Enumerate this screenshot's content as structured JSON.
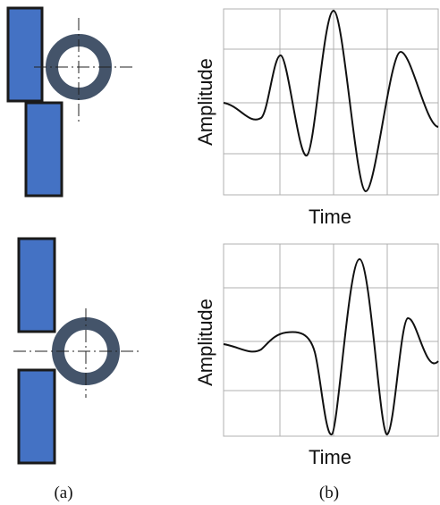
{
  "captions": {
    "a": "(a)",
    "b": "(b)"
  },
  "colors": {
    "bar_fill": "#4472c4",
    "bar_stroke": "#1a1a1a",
    "ring_fill": "#44546a",
    "wave_stroke": "#111111",
    "grid": "#b0b0b0",
    "crosshair": "#222222"
  },
  "panels": [
    {
      "id": "top",
      "xlabel": "Time",
      "ylabel": "Amplitude"
    },
    {
      "id": "bottom",
      "xlabel": "Time",
      "ylabel": "Amplitude"
    }
  ]
}
